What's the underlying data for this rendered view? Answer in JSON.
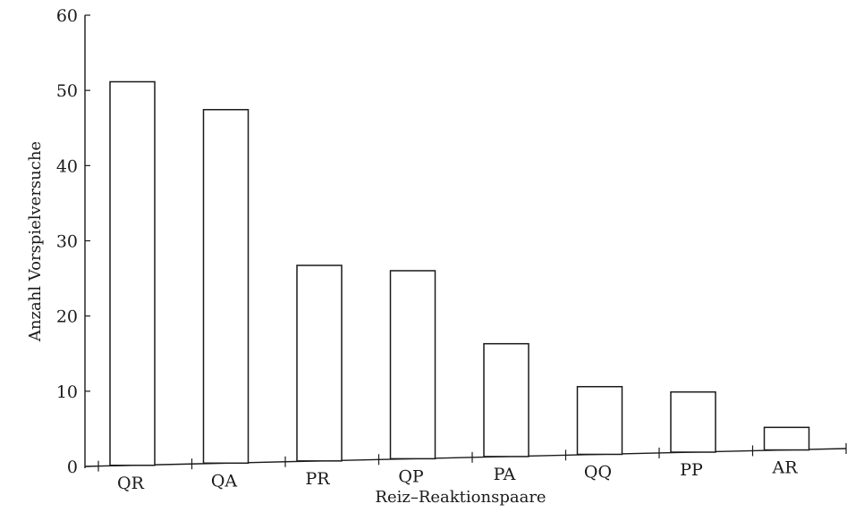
{
  "chart_data": {
    "type": "bar",
    "title": "",
    "xlabel": "Reiz–Reaktionspaare",
    "ylabel": "Anzahl Vorspielversuche",
    "categories": [
      "QR",
      "QA",
      "PR",
      "QP",
      "PA",
      "QQ",
      "PP",
      "AR"
    ],
    "values": [
      51,
      47,
      26,
      25,
      15,
      9,
      8,
      3
    ],
    "ylim": [
      0,
      60
    ],
    "yticks": [
      "0",
      "10",
      "20",
      "30",
      "40",
      "50",
      "60"
    ],
    "grid": false,
    "legend": "none",
    "colors": {
      "bar_fill": "#ffffff",
      "bar_stroke": "#1a1a1a",
      "axis": "#1a1a1a"
    }
  }
}
